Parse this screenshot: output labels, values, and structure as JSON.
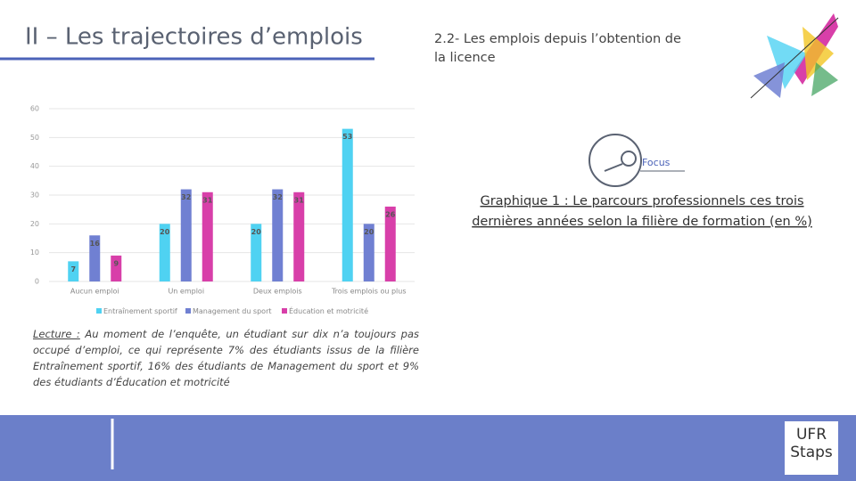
{
  "title": "II – Les trajectoires d’emplois",
  "subtitle": [
    "2.2- Les emplois depuis l’obtention de",
    "la licence"
  ],
  "focus": "Focus",
  "chart_caption": [
    "Graphique 1 : Le parcours professionnels ces trois",
    "dernières années selon la filière de formation (en %)"
  ],
  "chart_data": {
    "type": "bar",
    "categories": [
      "Aucun emploi",
      "Un emploi",
      "Deux emplois",
      "Trois emplois ou plus"
    ],
    "series": [
      {
        "name": "Entraînement sportif",
        "color": "#4fd2f2",
        "values": [
          7,
          20,
          20,
          53
        ]
      },
      {
        "name": "Management du sport",
        "color": "#7080d2",
        "values": [
          16,
          32,
          32,
          20
        ]
      },
      {
        "name": "Éducation et motricité",
        "color": "#d83fa9",
        "values": [
          9,
          31,
          31,
          26
        ]
      }
    ],
    "ylim": [
      0,
      60
    ],
    "yticks": [
      0,
      10,
      20,
      30,
      40,
      50,
      60
    ],
    "grid": true,
    "legend": "bottom"
  },
  "lecture": {
    "label": "Lecture :",
    "text": "Au moment de l’enquête, un étudiant sur dix n’a toujours pas occupé d’emploi, ce qui représente 7% des étudiants issus de la filière Entraînement sportif, 16% des étudiants de Management du sport et 9% des étudiants d’Éducation et motricité"
  },
  "logo": [
    "UFR",
    "Staps"
  ]
}
